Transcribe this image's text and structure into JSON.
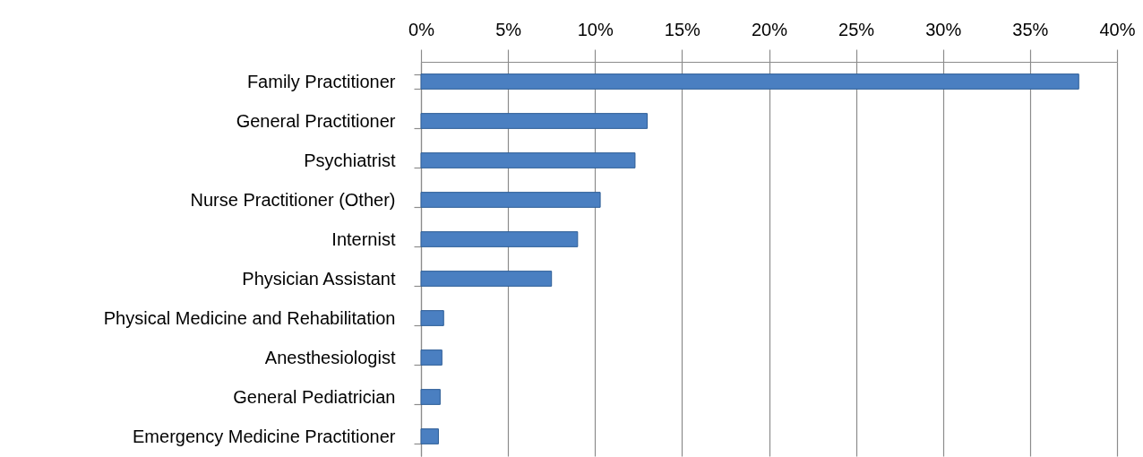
{
  "chart_data": {
    "type": "bar",
    "orientation": "horizontal",
    "categories": [
      "Family Practitioner",
      "General Practitioner",
      "Psychiatrist",
      "Nurse Practitioner (Other)",
      "Internist",
      "Physician Assistant",
      "Physical Medicine and Rehabilitation",
      "Anesthesiologist",
      "General Pediatrician",
      "Emergency Medicine Practitioner"
    ],
    "values": [
      37.8,
      13.0,
      12.3,
      10.3,
      9.0,
      7.5,
      1.3,
      1.2,
      1.1,
      1.0
    ],
    "color": "#4a7fc1",
    "xlim": [
      0,
      40
    ],
    "xticks": [
      {
        "value": 0,
        "label": "0%"
      },
      {
        "value": 5,
        "label": "5%"
      },
      {
        "value": 10,
        "label": "10%"
      },
      {
        "value": 15,
        "label": "15%"
      },
      {
        "value": 20,
        "label": "20%"
      },
      {
        "value": 25,
        "label": "25%"
      },
      {
        "value": 30,
        "label": "30%"
      },
      {
        "value": 35,
        "label": "35%"
      },
      {
        "value": 40,
        "label": "40%"
      }
    ],
    "grid": "x"
  }
}
